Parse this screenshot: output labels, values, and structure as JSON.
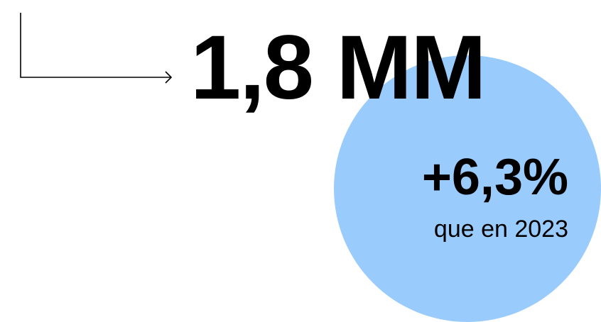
{
  "headline": {
    "value": "1,8 MM"
  },
  "stat": {
    "change": "+6,3%",
    "comparison": "que en 2023"
  },
  "icons": {
    "arrow": "elbow-right-arrow-icon"
  },
  "colors": {
    "background": "#ffffff",
    "text": "#000000",
    "circle": "#99cbfd"
  }
}
